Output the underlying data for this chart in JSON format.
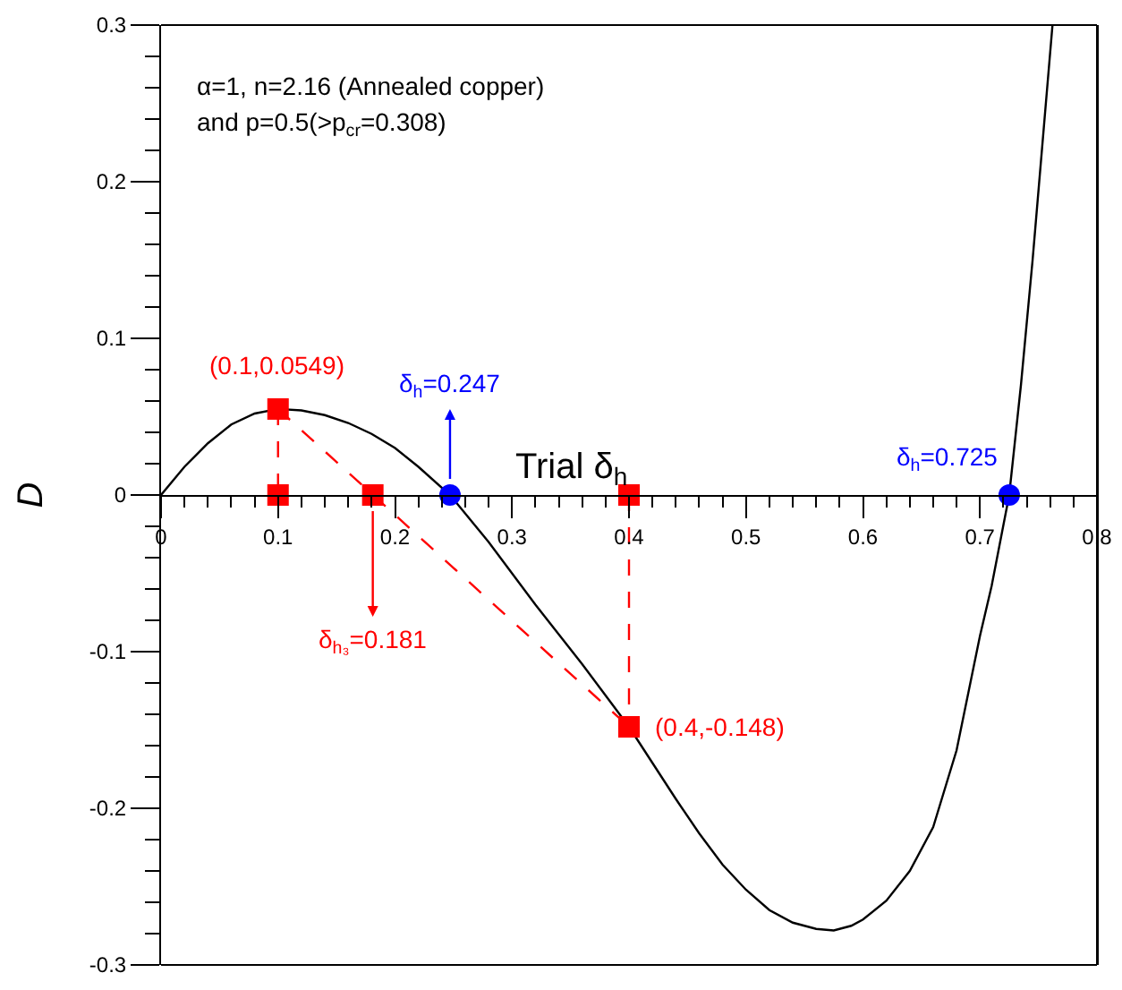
{
  "chart_data": {
    "type": "line",
    "xlabel": "Trial δ$_{h}$",
    "ylabel": "D",
    "xlim": [
      0,
      0.8
    ],
    "xticks": [
      0,
      0.1,
      0.2,
      0.3,
      0.4,
      0.5,
      0.6,
      0.7,
      0.8
    ],
    "ylim": [
      -0.3,
      0.3
    ],
    "yticks": [
      -0.3,
      -0.2,
      -0.1,
      0,
      0.1,
      0.2,
      0.3
    ],
    "grid": false,
    "series": [
      {
        "color": "#000000",
        "line_style": "solid",
        "marker": "none",
        "x": [
          0,
          0.02,
          0.04,
          0.06,
          0.08,
          0.1,
          0.12,
          0.14,
          0.16,
          0.18,
          0.2,
          0.22,
          0.247,
          0.28,
          0.3,
          0.32,
          0.34,
          0.36,
          0.38,
          0.4,
          0.42,
          0.44,
          0.46,
          0.48,
          0.5,
          0.52,
          0.54,
          0.56,
          0.575,
          0.59,
          0.6,
          0.62,
          0.64,
          0.66,
          0.68,
          0.7,
          0.71,
          0.725,
          0.735,
          0.745,
          0.762
        ],
        "values": [
          0,
          0.018,
          0.033,
          0.045,
          0.052,
          0.0549,
          0.054,
          0.051,
          0.046,
          0.039,
          0.03,
          0.018,
          0,
          -0.03,
          -0.05,
          -0.07,
          -0.089,
          -0.108,
          -0.128,
          -0.148,
          -0.171,
          -0.194,
          -0.216,
          -0.236,
          -0.252,
          -0.265,
          -0.273,
          -0.277,
          -0.278,
          -0.275,
          -0.271,
          -0.259,
          -0.24,
          -0.212,
          -0.163,
          -0.09,
          -0.058,
          0,
          0.07,
          0.15,
          0.3
        ]
      },
      {
        "type": "line",
        "color": "#ff0000",
        "line_style": "dashed",
        "marker": "none",
        "x": [
          0.1,
          0.1,
          null,
          0.1,
          0.4,
          null,
          0.4,
          0.4
        ],
        "values": [
          0.0549,
          0,
          null,
          0.0549,
          -0.148,
          null,
          0,
          -0.148
        ]
      },
      {
        "type": "scatter",
        "color": "#ff0000",
        "marker": "square",
        "x": [
          0.1,
          0.1,
          0.181,
          0.4,
          0.4
        ],
        "values": [
          0.0549,
          0,
          0,
          0,
          -0.148
        ]
      },
      {
        "type": "scatter",
        "color": "#0000ff",
        "marker": "circle",
        "x": [
          0.247,
          0.725
        ],
        "values": [
          0,
          0
        ]
      }
    ],
    "annotations": [
      "α=1, n=2.16 (Annealed copper)",
      "and p=0.5(>p$_{cr}$=0.308)",
      {
        "text": "(0.1,0.0549)",
        "x": 0.1,
        "y": 0.0549
      },
      {
        "text": "(0.4,-0.148)",
        "x": 0.4,
        "y": -0.148
      },
      {
        "text": "δ$_{h}$=0.247",
        "x": 0.247,
        "y": 0
      },
      {
        "text": "δ$_{h₃}$=0.181",
        "x": 0.181,
        "y": 0
      },
      {
        "text": "δ$_{h}$=0.725",
        "x": 0.725,
        "y": 0
      }
    ]
  }
}
